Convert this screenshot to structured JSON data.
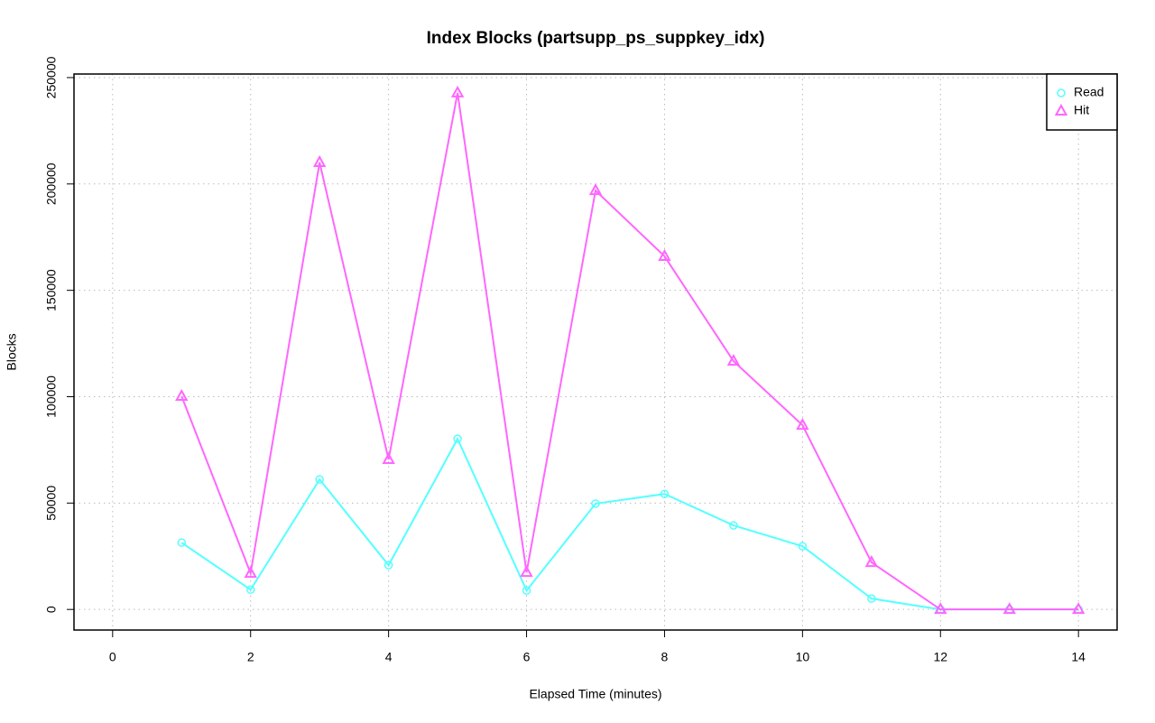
{
  "chart_data": {
    "type": "line",
    "title": "Index Blocks (partsupp_ps_suppkey_idx)",
    "x_label": "Elapsed Time (minutes)",
    "y_label": "Blocks",
    "x": [
      1,
      2,
      3,
      4,
      5,
      6,
      7,
      8,
      9,
      10,
      11,
      12,
      13,
      14
    ],
    "series": [
      {
        "name": "Read",
        "color": "#55ffff",
        "marker": "circle",
        "values": [
          31400,
          9300,
          61100,
          20800,
          80200,
          8900,
          49700,
          54300,
          39500,
          29700,
          5100,
          0,
          0,
          0
        ]
      },
      {
        "name": "Hit",
        "color": "#ff66ff",
        "marker": "triangle",
        "values": [
          100200,
          17000,
          210100,
          70500,
          242800,
          17400,
          196900,
          166000,
          116700,
          86600,
          22100,
          0,
          0,
          0
        ]
      }
    ],
    "xlim": [
      -0.56,
      14.56
    ],
    "xticks": [
      0,
      2,
      4,
      6,
      8,
      10,
      12,
      14
    ],
    "ylim": [
      -9680,
      251680
    ],
    "yticks": [
      0,
      50000,
      100000,
      150000,
      200000,
      250000
    ],
    "grid": true,
    "legend": "top-right"
  }
}
